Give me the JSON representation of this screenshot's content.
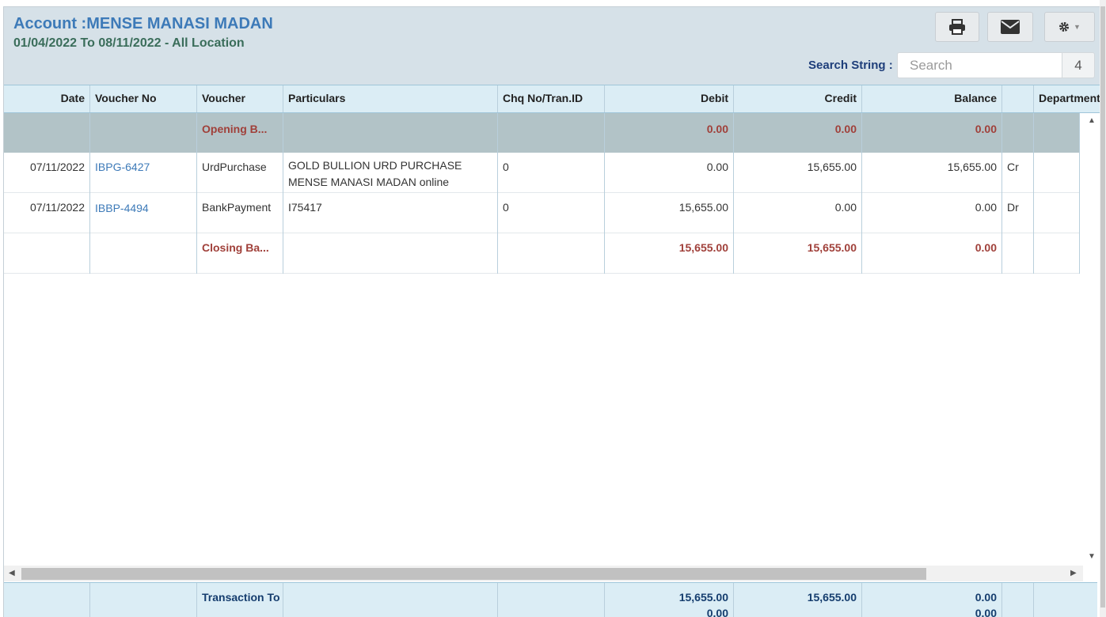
{
  "header": {
    "title": "Account :MENSE MANASI MADAN",
    "subtitle": "01/04/2022 To 08/11/2022 - All Location",
    "print_icon": "printer-icon",
    "email_icon": "envelope-icon",
    "settings_icon": "gear-icon"
  },
  "search": {
    "label": "Search String :",
    "placeholder": "Search",
    "count": "4"
  },
  "columns": [
    "Date",
    "Voucher No",
    "Voucher",
    "Particulars",
    "Chq No/Tran.ID",
    "Debit",
    "Credit",
    "Balance",
    "",
    "Department"
  ],
  "opening": {
    "voucher": "Opening B...",
    "debit": "0.00",
    "credit": "0.00",
    "balance": "0.00"
  },
  "rows": [
    {
      "date": "07/11/2022",
      "voucher_no": "IBPG-6427",
      "voucher": "UrdPurchase",
      "particulars_1": "GOLD BULLION URD PURCHASE",
      "particulars_2": "MENSE MANASI MADAN online",
      "chq": "0",
      "debit": "0.00",
      "credit": "15,655.00",
      "balance": "15,655.00",
      "drcr": "Cr"
    },
    {
      "date": "07/11/2022",
      "voucher_no": "IBBP-4494",
      "voucher": "BankPayment",
      "particulars_1": "I75417",
      "particulars_2": "",
      "chq": "0",
      "debit": "15,655.00",
      "credit": "0.00",
      "balance": "0.00",
      "drcr": "Dr"
    }
  ],
  "closing": {
    "voucher": "Closing Ba...",
    "debit": "15,655.00",
    "credit": "15,655.00",
    "balance": "0.00"
  },
  "footer": {
    "label": "Transaction To",
    "debit": "15,655.00",
    "credit": "15,655.00",
    "balance": "0.00",
    "debit_2": "0.00",
    "balance_2": "0.00"
  }
}
